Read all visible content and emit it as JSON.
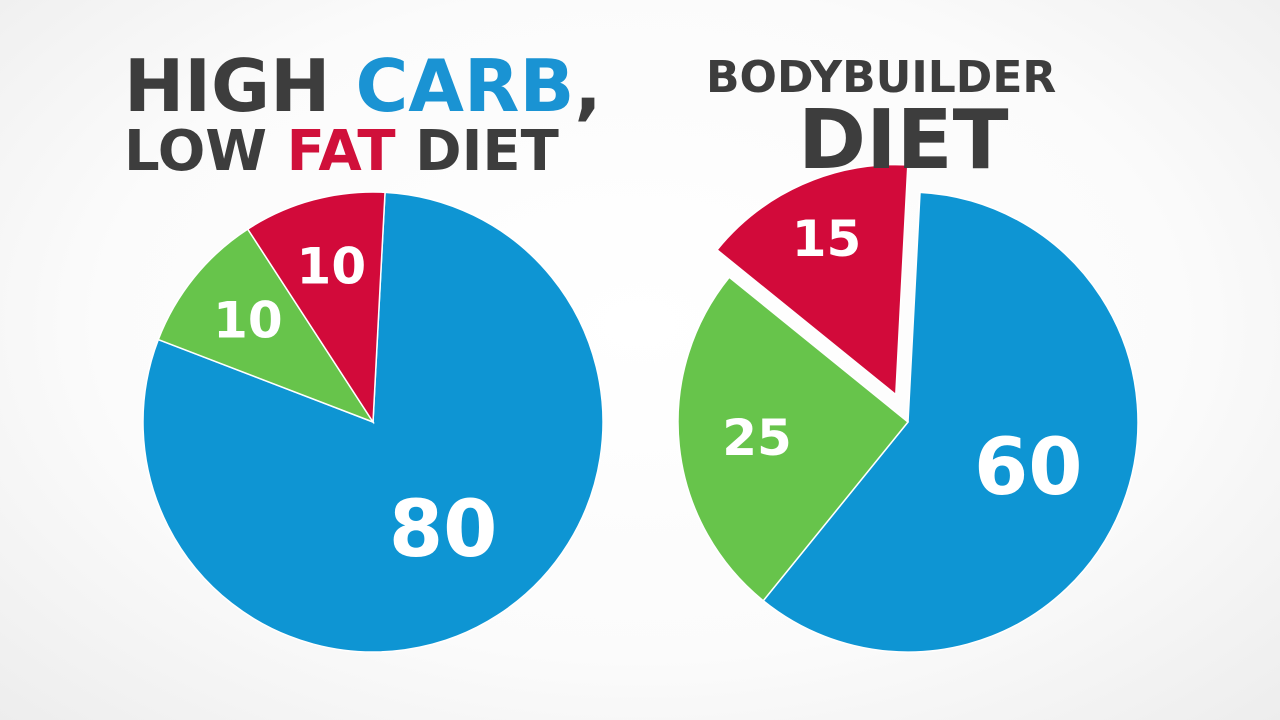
{
  "titles": {
    "left_line1_a": "HIGH ",
    "left_line1_b": "CARB",
    "left_line1_c": ",",
    "left_line2_a": "LOW ",
    "left_line2_b": "FAT",
    "left_line2_c": " DIET",
    "right_line1": "BODYBUILDER",
    "right_line2": "DIET"
  },
  "colors": {
    "carb": "#0e95d3",
    "protein": "#67c44b",
    "fat": "#d20a3a",
    "title": "#3d3d3d",
    "title_carb": "#1a93d3",
    "title_fat": "#d0103a"
  },
  "chart_data": [
    {
      "type": "pie",
      "title": "HIGH CARB, LOW FAT DIET",
      "slices": [
        {
          "label": "80",
          "value": 80,
          "color": "#0e95d3"
        },
        {
          "label": "10",
          "value": 10,
          "color": "#67c44b"
        },
        {
          "label": "10",
          "value": 10,
          "color": "#d20a3a"
        }
      ]
    },
    {
      "type": "pie",
      "title": "BODYBUILDER DIET",
      "slices": [
        {
          "label": "60",
          "value": 60,
          "color": "#0e95d3"
        },
        {
          "label": "25",
          "value": 25,
          "color": "#67c44b"
        },
        {
          "label": "15",
          "value": 15,
          "color": "#d20a3a",
          "exploded": true
        }
      ]
    }
  ]
}
